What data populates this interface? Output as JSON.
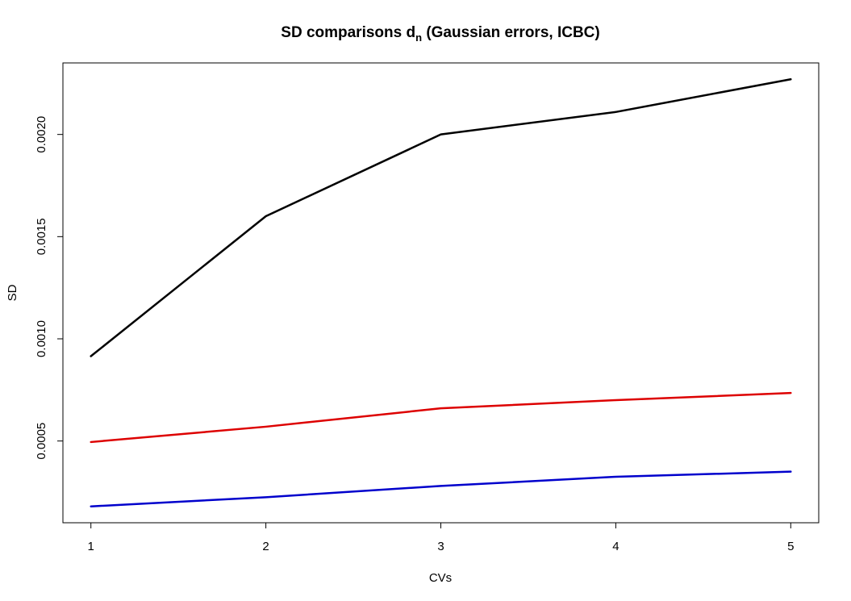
{
  "chart_data": {
    "type": "line",
    "title": "SD comparisons d",
    "title_subscript": "n",
    "title_suffix": " (Gaussian errors, ICBC)",
    "xlabel": "CVs",
    "ylabel": "SD",
    "x": [
      1,
      2,
      3,
      4,
      5
    ],
    "xlim": [
      0.84,
      5.16
    ],
    "ylim": [
      0.0001,
      0.00235
    ],
    "x_ticks": [
      1,
      2,
      3,
      4,
      5
    ],
    "y_ticks": [
      "0.0005",
      "0.0010",
      "0.0015",
      "0.0020"
    ],
    "y_tick_values": [
      0.0005,
      0.001,
      0.0015,
      0.002
    ],
    "grid": false,
    "legend": "none",
    "series": [
      {
        "color": "#000000",
        "values": [
          0.000915,
          0.0016,
          0.002,
          0.00211,
          0.00227
        ]
      },
      {
        "color": "#dd0000",
        "values": [
          0.000495,
          0.00057,
          0.00066,
          0.0007,
          0.000735
        ]
      },
      {
        "color": "#0000cc",
        "values": [
          0.00018,
          0.000225,
          0.00028,
          0.000325,
          0.00035
        ]
      }
    ]
  }
}
